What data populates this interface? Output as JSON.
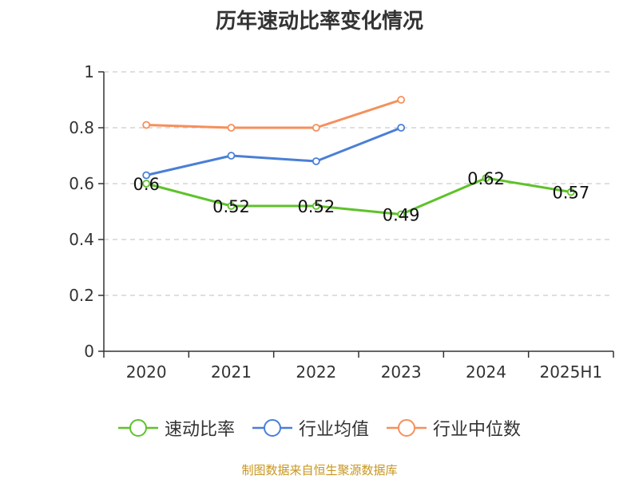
{
  "chart_data": {
    "type": "line",
    "title": "历年速动比率变化情况",
    "categories": [
      "2020",
      "2021",
      "2022",
      "2023",
      "2024",
      "2025H1"
    ],
    "yticks": [
      "0",
      "0.2",
      "0.4",
      "0.6",
      "0.8",
      "1"
    ],
    "ylim": [
      0,
      1
    ],
    "grid": true,
    "legend_position": "bottom",
    "series": [
      {
        "name": "速动比率",
        "color": "#5ec22a",
        "values": [
          0.6,
          0.52,
          0.52,
          0.49,
          0.62,
          0.57
        ],
        "labels": [
          "0.6",
          "0.52",
          "0.52",
          "0.49",
          "0.62",
          "0.57"
        ]
      },
      {
        "name": "行业均值",
        "color": "#4a7fd6",
        "values": [
          0.63,
          0.7,
          0.68,
          0.8,
          null,
          null
        ]
      },
      {
        "name": "行业中位数",
        "color": "#f5905b",
        "values": [
          0.81,
          0.8,
          0.8,
          0.9,
          null,
          null
        ]
      }
    ]
  },
  "footer": {
    "source": "制图数据来自恒生聚源数据库"
  }
}
